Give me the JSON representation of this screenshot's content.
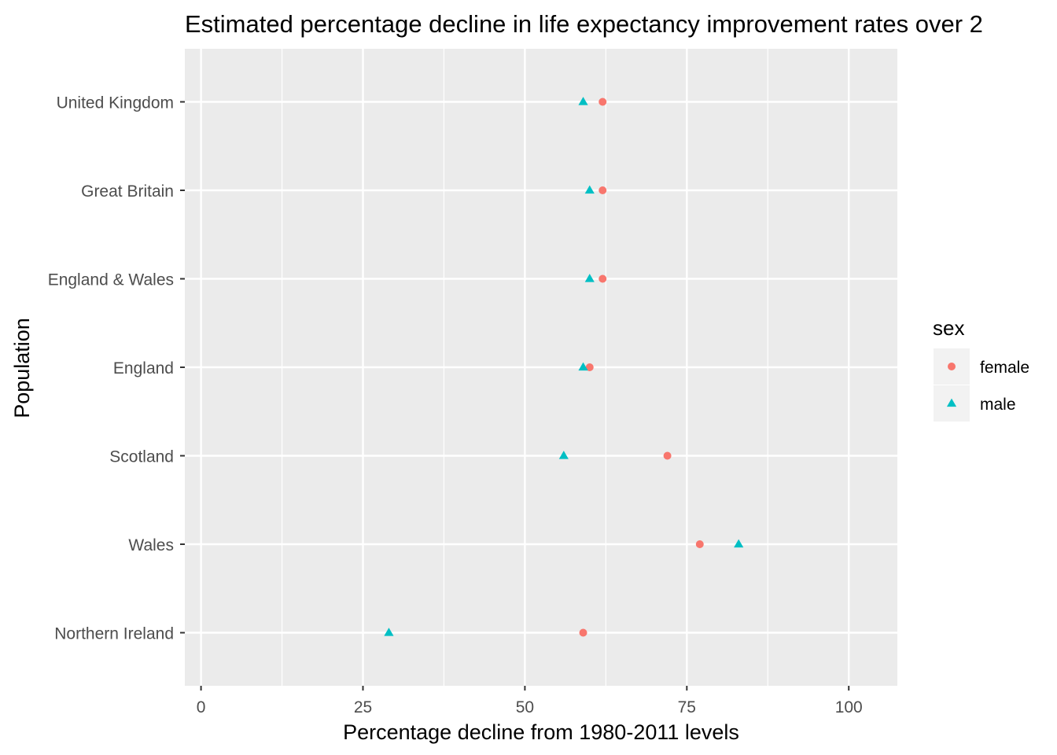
{
  "chart_data": {
    "type": "scatter",
    "title": "Estimated percentage decline in life expectancy improvement rates over 2",
    "xlabel": "Percentage decline from 1980-2011 levels",
    "ylabel": "Population",
    "xlim": [
      -2.5,
      107.5
    ],
    "x_ticks": [
      "0",
      "25",
      "50",
      "75",
      "100"
    ],
    "x_tick_values": [
      0,
      25,
      50,
      75,
      100
    ],
    "categories": [
      "United Kingdom",
      "Great Britain",
      "England & Wales",
      "England",
      "Scotland",
      "Wales",
      "Northern Ireland"
    ],
    "grid": true,
    "legend": {
      "title": "sex",
      "position": "right"
    },
    "series": [
      {
        "name": "female",
        "shape": "circle",
        "color": "#F8766D",
        "values": [
          62,
          62,
          62,
          60,
          72,
          77,
          59
        ]
      },
      {
        "name": "male",
        "shape": "triangle",
        "color": "#00BFC4",
        "values": [
          59,
          60,
          60,
          59,
          56,
          83,
          29
        ]
      }
    ],
    "colors": {
      "panel": "#EBEBEB",
      "grid": "#FFFFFF",
      "tick": "#333333"
    }
  }
}
